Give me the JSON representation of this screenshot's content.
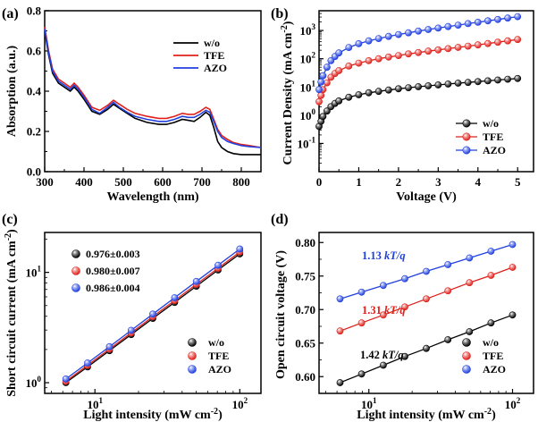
{
  "chart_data": [
    {
      "panel": "(a)",
      "type": "line",
      "xlabel": "Wavelength (nm)",
      "ylabel": "Absorption (a.u.)",
      "xlim": [
        300,
        850
      ],
      "ylim": [
        0.0,
        0.8
      ],
      "xticks": [
        "300",
        "400",
        "500",
        "600",
        "700",
        "800"
      ],
      "yticks": [
        "0.0",
        "0.2",
        "0.4",
        "0.6",
        "0.8"
      ],
      "legend_position": "top-right",
      "series": [
        {
          "name": "w/o",
          "color": "#000000",
          "x": [
            300,
            310,
            320,
            335,
            350,
            365,
            375,
            385,
            400,
            420,
            440,
            460,
            475,
            490,
            510,
            530,
            560,
            590,
            610,
            630,
            650,
            665,
            680,
            695,
            710,
            720,
            730,
            740,
            750,
            765,
            780,
            800,
            820,
            850
          ],
          "y": [
            0.7,
            0.58,
            0.49,
            0.44,
            0.42,
            0.4,
            0.42,
            0.4,
            0.36,
            0.3,
            0.285,
            0.31,
            0.335,
            0.315,
            0.29,
            0.265,
            0.245,
            0.235,
            0.235,
            0.245,
            0.26,
            0.255,
            0.25,
            0.27,
            0.295,
            0.28,
            0.22,
            0.15,
            0.12,
            0.1,
            0.09,
            0.085,
            0.085,
            0.085
          ]
        },
        {
          "name": "TFE",
          "color": "#e0201b",
          "x": [
            300,
            310,
            320,
            335,
            350,
            365,
            375,
            385,
            400,
            420,
            440,
            460,
            475,
            490,
            510,
            530,
            560,
            590,
            610,
            630,
            650,
            665,
            680,
            695,
            710,
            720,
            730,
            740,
            750,
            765,
            780,
            800,
            820,
            850
          ],
          "y": [
            0.72,
            0.6,
            0.51,
            0.46,
            0.44,
            0.42,
            0.44,
            0.42,
            0.38,
            0.32,
            0.305,
            0.33,
            0.355,
            0.335,
            0.31,
            0.29,
            0.275,
            0.265,
            0.265,
            0.275,
            0.29,
            0.285,
            0.285,
            0.3,
            0.32,
            0.31,
            0.26,
            0.21,
            0.18,
            0.16,
            0.145,
            0.135,
            0.13,
            0.12
          ]
        },
        {
          "name": "AZO",
          "color": "#2040e0",
          "x": [
            300,
            310,
            320,
            335,
            350,
            365,
            375,
            385,
            400,
            420,
            440,
            460,
            475,
            490,
            510,
            530,
            560,
            590,
            610,
            630,
            650,
            665,
            680,
            695,
            710,
            720,
            730,
            740,
            750,
            765,
            780,
            800,
            820,
            850
          ],
          "y": [
            0.71,
            0.59,
            0.5,
            0.45,
            0.43,
            0.41,
            0.43,
            0.41,
            0.37,
            0.31,
            0.29,
            0.32,
            0.345,
            0.32,
            0.295,
            0.275,
            0.26,
            0.25,
            0.25,
            0.26,
            0.275,
            0.27,
            0.27,
            0.285,
            0.305,
            0.295,
            0.25,
            0.2,
            0.17,
            0.15,
            0.14,
            0.13,
            0.125,
            0.12
          ]
        }
      ]
    },
    {
      "panel": "(b)",
      "type": "scatter",
      "yscale": "log",
      "xlabel": "Voltage (V)",
      "ylabel": "Current Density (mA cm",
      "ylabel_sup": "-2",
      "ylabel_end": ")",
      "xlim": [
        0,
        5.4
      ],
      "ylim_exp": [
        -2,
        3.7
      ],
      "xticks": [
        "0",
        "1",
        "2",
        "3",
        "4",
        "5"
      ],
      "ytick_exps": [
        "-1",
        "0",
        "1",
        "2",
        "3"
      ],
      "legend_position": "bottom-right",
      "series": [
        {
          "name": "w/o",
          "color": "#000000",
          "x": [
            0,
            0.05,
            0.1,
            0.2,
            0.3,
            0.4,
            0.5,
            0.75,
            1.0,
            1.25,
            1.5,
            1.75,
            2.0,
            2.25,
            2.5,
            2.75,
            3.0,
            3.25,
            3.5,
            3.75,
            4.0,
            4.25,
            4.5,
            4.75,
            5.0
          ],
          "y": [
            0.4,
            0.6,
            0.9,
            1.4,
            2.0,
            2.6,
            3.2,
            4.3,
            5.3,
            6.2,
            7.0,
            7.8,
            8.6,
            9.4,
            10.2,
            11.0,
            11.8,
            12.7,
            13.6,
            14.5,
            15.5,
            16.5,
            17.6,
            18.8,
            20.0
          ]
        },
        {
          "name": "TFE",
          "color": "#e0201b",
          "x": [
            0,
            0.05,
            0.1,
            0.2,
            0.3,
            0.4,
            0.5,
            0.75,
            1.0,
            1.25,
            1.5,
            1.75,
            2.0,
            2.25,
            2.5,
            2.75,
            3.0,
            3.25,
            3.5,
            3.75,
            4.0,
            4.25,
            4.5,
            4.75,
            5.0
          ],
          "y": [
            3,
            5,
            8,
            14,
            22,
            30,
            38,
            55,
            70,
            85,
            100,
            115,
            130,
            148,
            165,
            185,
            205,
            228,
            252,
            280,
            310,
            345,
            385,
            430,
            480
          ]
        },
        {
          "name": "AZO",
          "color": "#2040e0",
          "x": [
            0,
            0.05,
            0.1,
            0.2,
            0.3,
            0.4,
            0.5,
            0.75,
            1.0,
            1.25,
            1.5,
            1.75,
            2.0,
            2.25,
            2.5,
            2.75,
            3.0,
            3.25,
            3.5,
            3.75,
            4.0,
            4.25,
            4.5,
            4.75,
            5.0
          ],
          "y": [
            8,
            15,
            25,
            50,
            85,
            120,
            160,
            250,
            340,
            430,
            520,
            620,
            720,
            830,
            950,
            1080,
            1220,
            1380,
            1550,
            1750,
            1960,
            2200,
            2450,
            2750,
            3100
          ]
        }
      ]
    },
    {
      "panel": "(c)",
      "type": "scatter",
      "xscale": "log",
      "yscale": "log",
      "xlabel": "Light intensity (mW cm",
      "xlabel_sup": "-2",
      "xlabel_end": ")",
      "ylabel": "Short circuit current (mA cm",
      "ylabel_sup": "-2",
      "ylabel_end": ")",
      "xlim": [
        4.5,
        140
      ],
      "ylim": [
        0.8,
        23
      ],
      "xtick_exps": [
        "1",
        "2"
      ],
      "ytick_exps": [
        "0",
        "1"
      ],
      "legend_position": "bottom-right",
      "slopes_legend": [
        "0.976±0.003",
        "0.980±0.007",
        "0.986±0.004"
      ],
      "series": [
        {
          "name": "w/o",
          "color": "#000000",
          "x": [
            6.3,
            8.9,
            12.6,
            17.8,
            25.1,
            35.5,
            50.1,
            70.8,
            100
          ],
          "y": [
            1.0,
            1.39,
            1.95,
            2.73,
            3.83,
            5.35,
            7.49,
            10.5,
            14.7
          ]
        },
        {
          "name": "TFE",
          "color": "#e0201b",
          "x": [
            6.3,
            8.9,
            12.6,
            17.8,
            25.1,
            35.5,
            50.1,
            70.8,
            100
          ],
          "y": [
            1.03,
            1.44,
            2.02,
            2.83,
            3.97,
            5.56,
            7.79,
            10.9,
            15.3
          ]
        },
        {
          "name": "AZO",
          "color": "#2040e0",
          "x": [
            6.3,
            8.9,
            12.6,
            17.8,
            25.1,
            35.5,
            50.1,
            70.8,
            100
          ],
          "y": [
            1.08,
            1.51,
            2.12,
            2.98,
            4.19,
            5.89,
            8.27,
            11.6,
            16.3
          ]
        }
      ]
    },
    {
      "panel": "(d)",
      "type": "scatter",
      "xscale": "log",
      "xlabel": "Light intensity (mW cm",
      "xlabel_sup": "-2",
      "xlabel_end": ")",
      "ylabel": "Open circuit voltage (V)",
      "xlim": [
        4.5,
        140
      ],
      "ylim": [
        0.575,
        0.815
      ],
      "xtick_exps": [
        "1",
        "2"
      ],
      "yticks": [
        "0.60",
        "0.65",
        "0.70",
        "0.75",
        "0.80"
      ],
      "legend_position": "bottom-right",
      "annotations": [
        {
          "text_num": "1.13 ",
          "text_kt": "kT/q",
          "color": "#2040e0"
        },
        {
          "text_num": "1.31 ",
          "text_kt": "kT/q",
          "color": "#e0201b"
        },
        {
          "text_num": "1.42 ",
          "text_kt": "kT/q",
          "color": "#000000"
        }
      ],
      "series": [
        {
          "name": "w/o",
          "color": "#000000",
          "x": [
            6.3,
            8.9,
            12.6,
            17.8,
            25.1,
            35.5,
            50.1,
            70.8,
            100
          ],
          "y": [
            0.591,
            0.604,
            0.617,
            0.63,
            0.642,
            0.655,
            0.667,
            0.68,
            0.692
          ]
        },
        {
          "name": "TFE",
          "color": "#e0201b",
          "x": [
            6.3,
            8.9,
            12.6,
            17.8,
            25.1,
            35.5,
            50.1,
            70.8,
            100
          ],
          "y": [
            0.668,
            0.68,
            0.692,
            0.704,
            0.716,
            0.728,
            0.74,
            0.751,
            0.763
          ]
        },
        {
          "name": "AZO",
          "color": "#2040e0",
          "x": [
            6.3,
            8.9,
            12.6,
            17.8,
            25.1,
            35.5,
            50.1,
            70.8,
            100
          ],
          "y": [
            0.716,
            0.726,
            0.736,
            0.746,
            0.757,
            0.767,
            0.777,
            0.787,
            0.797
          ]
        }
      ]
    }
  ]
}
